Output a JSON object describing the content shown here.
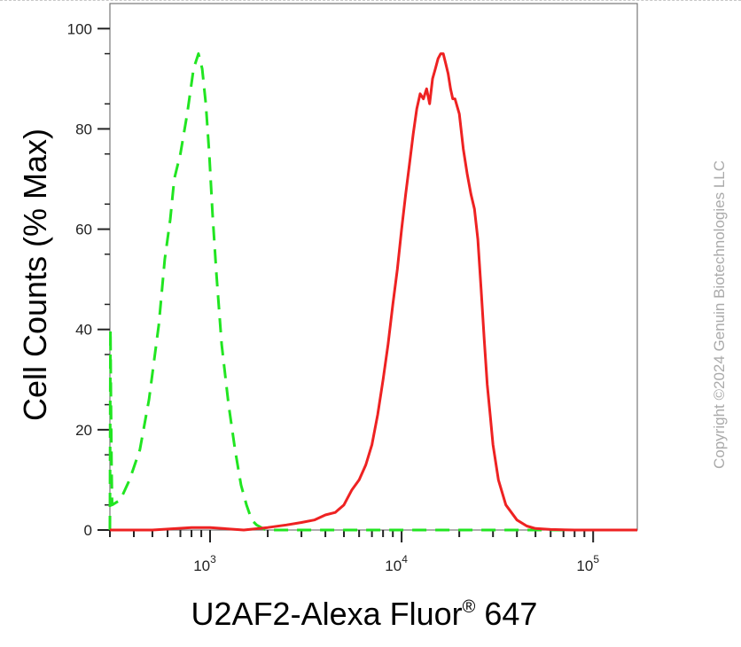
{
  "chart_data": {
    "type": "line",
    "title": "",
    "xlabel": "U2AF2-Alexa Fluor",
    "xlabel_superscript": "®",
    "xlabel_suffix": " 647",
    "ylabel": "Cell Counts (% Max)",
    "x_scale": "log",
    "xlim": [
      300,
      170000
    ],
    "ylim": [
      0,
      105
    ],
    "x_ticks": [
      {
        "value": 1000,
        "base": "10",
        "exp": "3"
      },
      {
        "value": 10000,
        "base": "10",
        "exp": "4"
      },
      {
        "value": 100000,
        "base": "10",
        "exp": "5"
      }
    ],
    "y_ticks": [
      0,
      20,
      40,
      60,
      80,
      100
    ],
    "grid": false,
    "series": [
      {
        "color": "#21e521",
        "style": "dashed",
        "x": [
          300,
          302,
          304,
          306,
          308,
          340,
          380,
          430,
          480,
          540,
          580,
          620,
          650,
          700,
          760,
          820,
          870,
          910,
          950,
          990,
          1030,
          1080,
          1150,
          1250,
          1350,
          1450,
          1550,
          1650,
          1750,
          1850,
          1950,
          2050,
          2200,
          2500,
          3000,
          5000,
          10000,
          30000,
          100000,
          170000
        ],
        "y": [
          0,
          40,
          25,
          12,
          5,
          6,
          10,
          16,
          26,
          41,
          54,
          62,
          70,
          75,
          83,
          92,
          95,
          92,
          85,
          75,
          63,
          51,
          37,
          25,
          16,
          9,
          5,
          2,
          1,
          0.5,
          0,
          0,
          0,
          0,
          0,
          0,
          0,
          0,
          0,
          0
        ]
      },
      {
        "color": "#ee2222",
        "style": "solid",
        "x": [
          300,
          500,
          800,
          1000,
          1500,
          2000,
          2500,
          3000,
          3500,
          4000,
          4500,
          5000,
          5500,
          6000,
          6500,
          7000,
          7500,
          8000,
          8500,
          9000,
          9500,
          10000,
          10500,
          11000,
          11500,
          12000,
          12500,
          13000,
          13500,
          14000,
          14500,
          15000,
          15500,
          16000,
          16500,
          17000,
          17500,
          18000,
          18500,
          19000,
          20000,
          21000,
          22000,
          23000,
          24000,
          25000,
          26000,
          27000,
          28000,
          29000,
          30000,
          32000,
          35000,
          40000,
          45000,
          50000,
          60000,
          80000,
          100000,
          170000
        ],
        "y": [
          0,
          0,
          0.5,
          0.5,
          0,
          0.5,
          1,
          1.5,
          2,
          3,
          3.5,
          5,
          8,
          10,
          13,
          17,
          23,
          30,
          37,
          45,
          52,
          60,
          67,
          73,
          79,
          84,
          87,
          86,
          88,
          85,
          90,
          92,
          94,
          95,
          95,
          93,
          91,
          88,
          86,
          86,
          83,
          76,
          71,
          67,
          64,
          58,
          48,
          38,
          29,
          23,
          17,
          10,
          5,
          2,
          0.8,
          0.3,
          0.1,
          0,
          0,
          0
        ]
      }
    ]
  },
  "watermark": "Copyright ©2024 Genuin Biotechnologies LLC"
}
